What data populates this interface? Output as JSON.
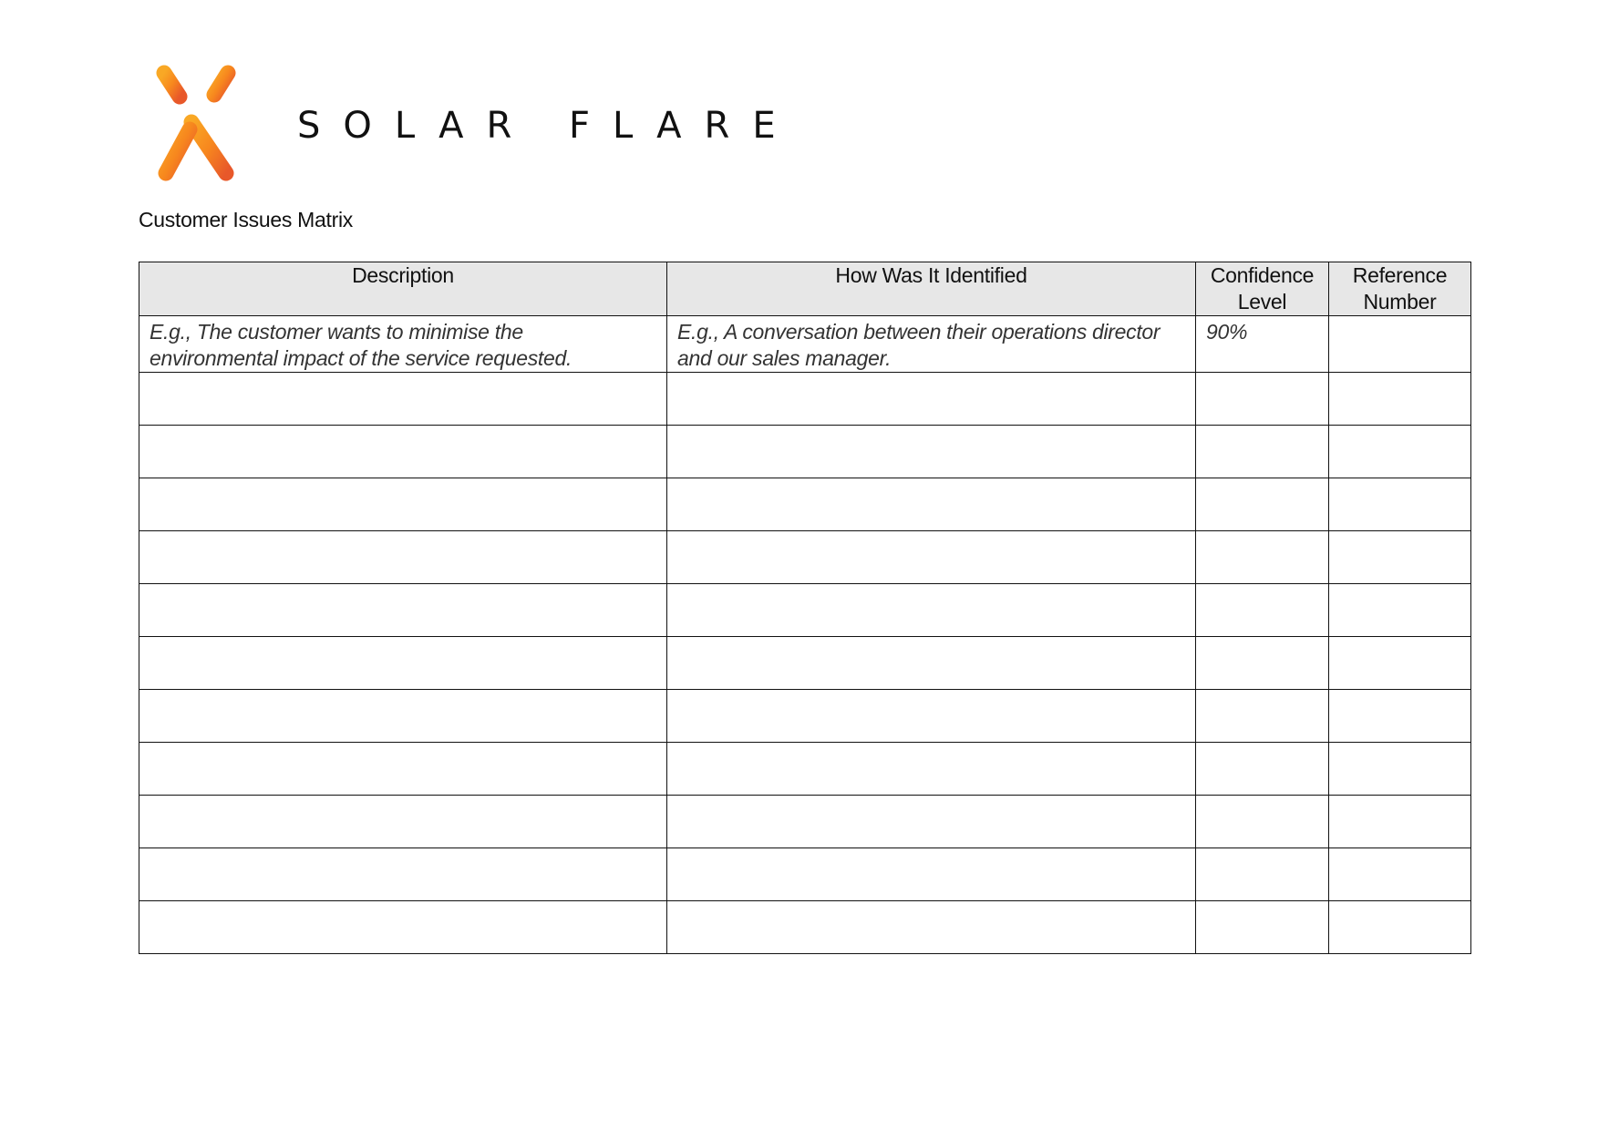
{
  "brand": {
    "name": "SOLAR FLARE",
    "icon": "solar-flare-asterisk-logo",
    "colors": [
      "#f9a825",
      "#f7871e",
      "#e8582a"
    ]
  },
  "document": {
    "title": "Customer Issues Matrix"
  },
  "table": {
    "headers": [
      "Description",
      "How Was It Identified",
      "Confidence Level",
      "Reference Number"
    ],
    "rows": [
      [
        "E.g., The customer wants to minimise the environmental impact of the service requested.",
        "E.g., A conversation between their operations director and our sales manager.",
        "90%",
        ""
      ],
      [
        "",
        "",
        "",
        ""
      ],
      [
        "",
        "",
        "",
        ""
      ],
      [
        "",
        "",
        "",
        ""
      ],
      [
        "",
        "",
        "",
        ""
      ],
      [
        "",
        "",
        "",
        ""
      ],
      [
        "",
        "",
        "",
        ""
      ],
      [
        "",
        "",
        "",
        ""
      ],
      [
        "",
        "",
        "",
        ""
      ],
      [
        "",
        "",
        "",
        ""
      ],
      [
        "",
        "",
        "",
        ""
      ],
      [
        "",
        "",
        "",
        ""
      ]
    ]
  }
}
